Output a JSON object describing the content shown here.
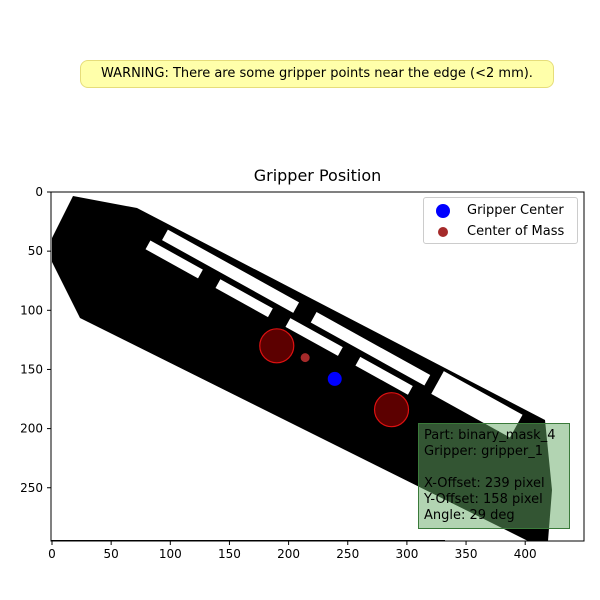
{
  "warning": "WARNING: There are some gripper points near the edge (<2 mm).",
  "chart_data": {
    "type": "scatter",
    "title": "Gripper Position",
    "xlim": [
      0,
      450
    ],
    "ylim": [
      0,
      295
    ],
    "y_inverted": true,
    "x_ticks": [
      0,
      50,
      100,
      150,
      200,
      250,
      300,
      350,
      400
    ],
    "y_ticks": [
      0,
      50,
      100,
      150,
      200,
      250
    ],
    "legend_position": "upper right",
    "series": [
      {
        "name": "Gripper Center",
        "color": "#0000ff",
        "points": [
          [
            239,
            158
          ]
        ]
      },
      {
        "name": "Center of Mass",
        "color": "#a52a2a",
        "points": [
          [
            214,
            140
          ]
        ]
      }
    ],
    "gripper_points": [
      [
        190,
        130
      ],
      [
        287,
        184
      ]
    ],
    "gripper_point_color": "#5c0000",
    "gripper_point_edge": "#dd1111"
  },
  "info": {
    "lines": [
      "Part: binary_mask_4",
      "Gripper: gripper_1",
      "",
      "X-Offset: 239 pixel",
      "Y-Offset: 158 pixel",
      "Angle: 29 deg"
    ]
  }
}
